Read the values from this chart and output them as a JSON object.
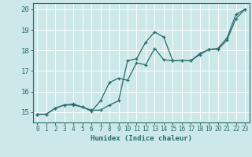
{
  "xlabel": "Humidex (Indice chaleur)",
  "ylabel": "",
  "bg_color": "#cce8e8",
  "line_color": "#2a6b6b",
  "grid_color": "#ffffff",
  "xlim": [
    -0.5,
    23.5
  ],
  "ylim": [
    14.5,
    20.3
  ],
  "xticks": [
    0,
    1,
    2,
    3,
    4,
    5,
    6,
    7,
    8,
    9,
    10,
    11,
    12,
    13,
    14,
    15,
    16,
    17,
    18,
    19,
    20,
    21,
    22,
    23
  ],
  "yticks": [
    15,
    16,
    17,
    18,
    19,
    20
  ],
  "line1_x": [
    0,
    1,
    2,
    3,
    4,
    5,
    6,
    7,
    8,
    9,
    10,
    11,
    12,
    13,
    14,
    15,
    16,
    17,
    18,
    19,
    20,
    21,
    22,
    23
  ],
  "line1_y": [
    14.9,
    14.9,
    15.2,
    15.35,
    15.35,
    15.25,
    15.1,
    15.1,
    15.35,
    15.55,
    17.5,
    17.6,
    18.4,
    18.9,
    18.65,
    17.5,
    17.5,
    17.5,
    17.8,
    18.05,
    18.1,
    18.6,
    19.75,
    20.0
  ],
  "line2_x": [
    0,
    1,
    2,
    3,
    4,
    5,
    6,
    7,
    8,
    9,
    10,
    11,
    12,
    13,
    14,
    15,
    16,
    17,
    18,
    19,
    20,
    21,
    22,
    23
  ],
  "line2_y": [
    14.9,
    14.9,
    15.2,
    15.35,
    15.4,
    15.25,
    15.05,
    15.55,
    16.45,
    16.65,
    16.55,
    17.4,
    17.3,
    18.1,
    17.55,
    17.5,
    17.5,
    17.5,
    17.85,
    18.05,
    18.05,
    18.5,
    19.55,
    20.0
  ]
}
